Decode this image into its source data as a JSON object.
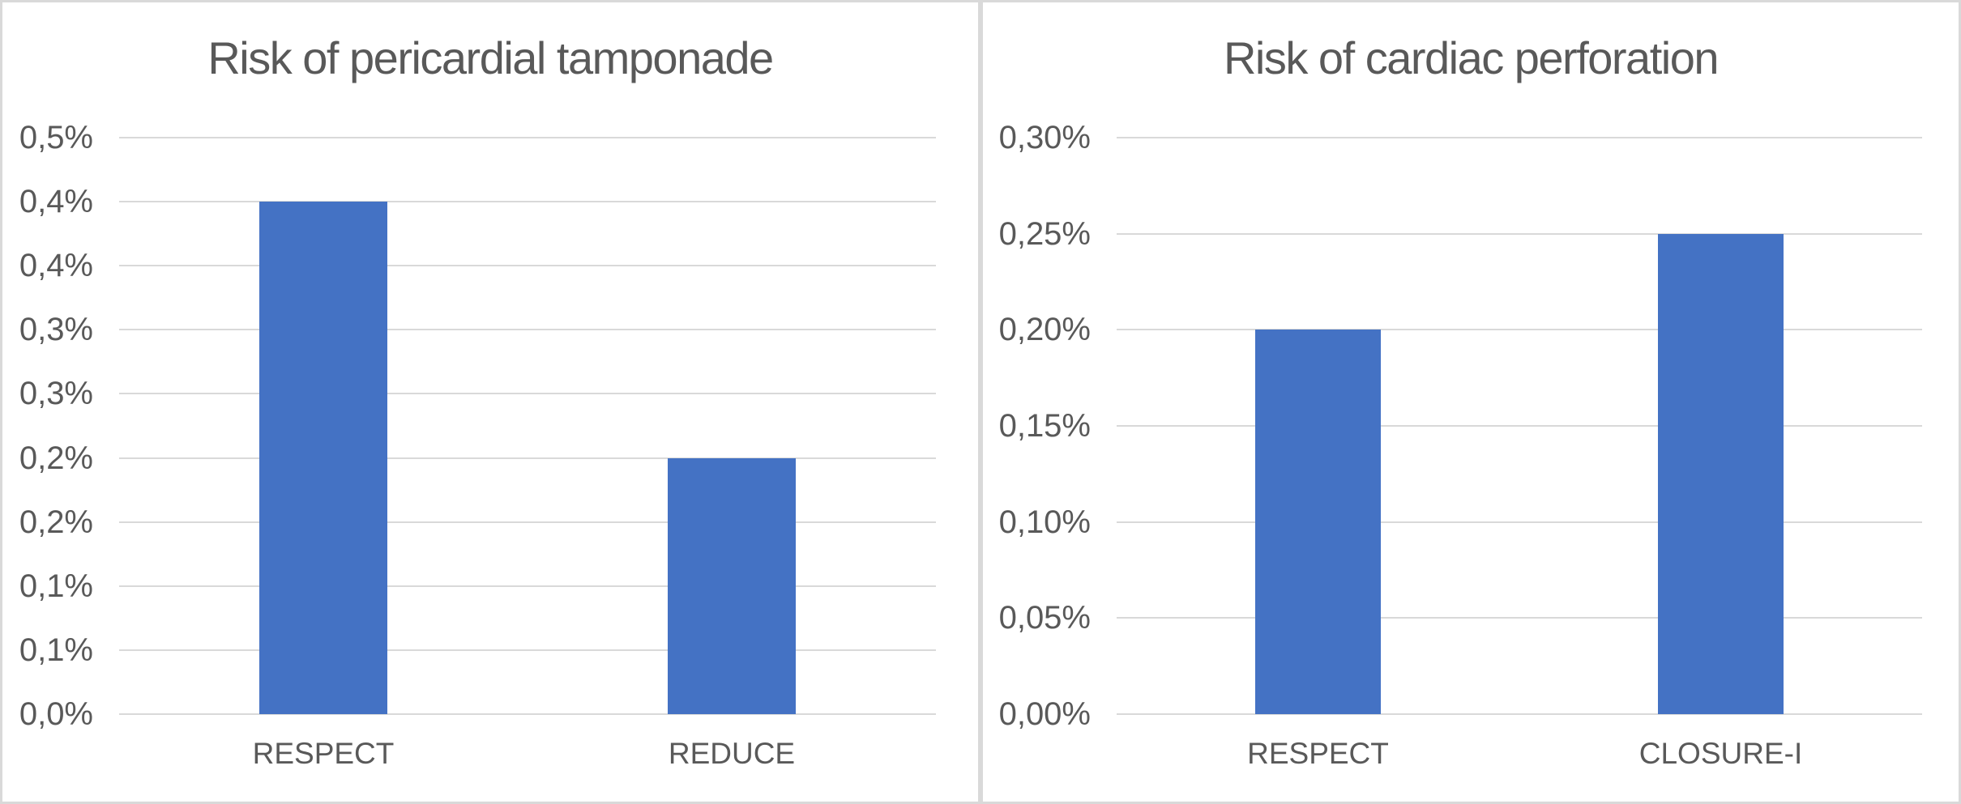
{
  "page": {
    "background_color": "#ffffff",
    "panel_border_color": "#d9d9d9",
    "decimal_separator": ","
  },
  "chart_data": [
    {
      "type": "bar",
      "title": "Risk of pericardial tamponade",
      "categories": [
        "RESPECT",
        "REDUCE"
      ],
      "values": [
        0.4,
        0.2
      ],
      "value_unit": "%",
      "xlabel": "",
      "ylabel": "",
      "y_axis": {
        "min": 0,
        "max": 0.45,
        "tick_step": 0.05,
        "tick_labels_top_to_bottom": [
          "0,5%",
          "0,4%",
          "0,4%",
          "0,3%",
          "0,3%",
          "0,2%",
          "0,2%",
          "0,1%",
          "0,1%",
          "0,0%"
        ]
      },
      "grid": true,
      "legend": "none",
      "bar_color": "#4472c4",
      "gridline_color": "#d9d9d9",
      "text_color": "#595959"
    },
    {
      "type": "bar",
      "title": "Risk of cardiac perforation",
      "categories": [
        "RESPECT",
        "CLOSURE-I"
      ],
      "values": [
        0.2,
        0.25
      ],
      "value_unit": "%",
      "xlabel": "",
      "ylabel": "",
      "y_axis": {
        "min": 0,
        "max": 0.3,
        "tick_step": 0.05,
        "tick_labels_top_to_bottom": [
          "0,30%",
          "0,25%",
          "0,20%",
          "0,15%",
          "0,10%",
          "0,05%",
          "0,00%"
        ]
      },
      "grid": true,
      "legend": "none",
      "bar_color": "#4472c4",
      "gridline_color": "#d9d9d9",
      "text_color": "#595959"
    }
  ]
}
